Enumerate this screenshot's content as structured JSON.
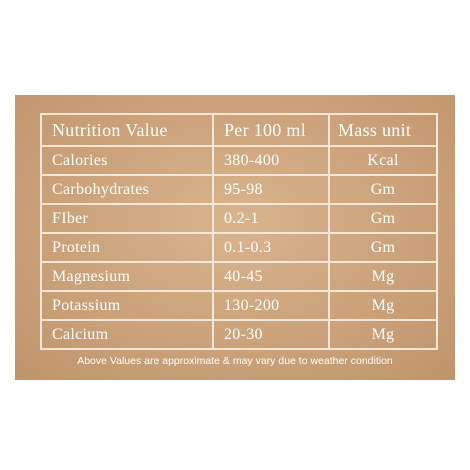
{
  "table": {
    "header": [
      "Nutrition Value",
      "Per 100 ml",
      "Mass unit"
    ],
    "rows": [
      [
        "Calories",
        "380-400",
        "Kcal"
      ],
      [
        "Carbohydrates",
        "95-98",
        "Gm"
      ],
      [
        "FIber",
        "0.2-1",
        "Gm"
      ],
      [
        "Protein",
        "0.1-0.3",
        "Gm"
      ],
      [
        "Magnesium",
        "40-45",
        "Mg"
      ],
      [
        "Potassium",
        "130-200",
        "Mg"
      ],
      [
        "Calcium",
        "20-30",
        "Mg"
      ]
    ],
    "note": "Above Values are approximate & may vary due to weather condition"
  }
}
